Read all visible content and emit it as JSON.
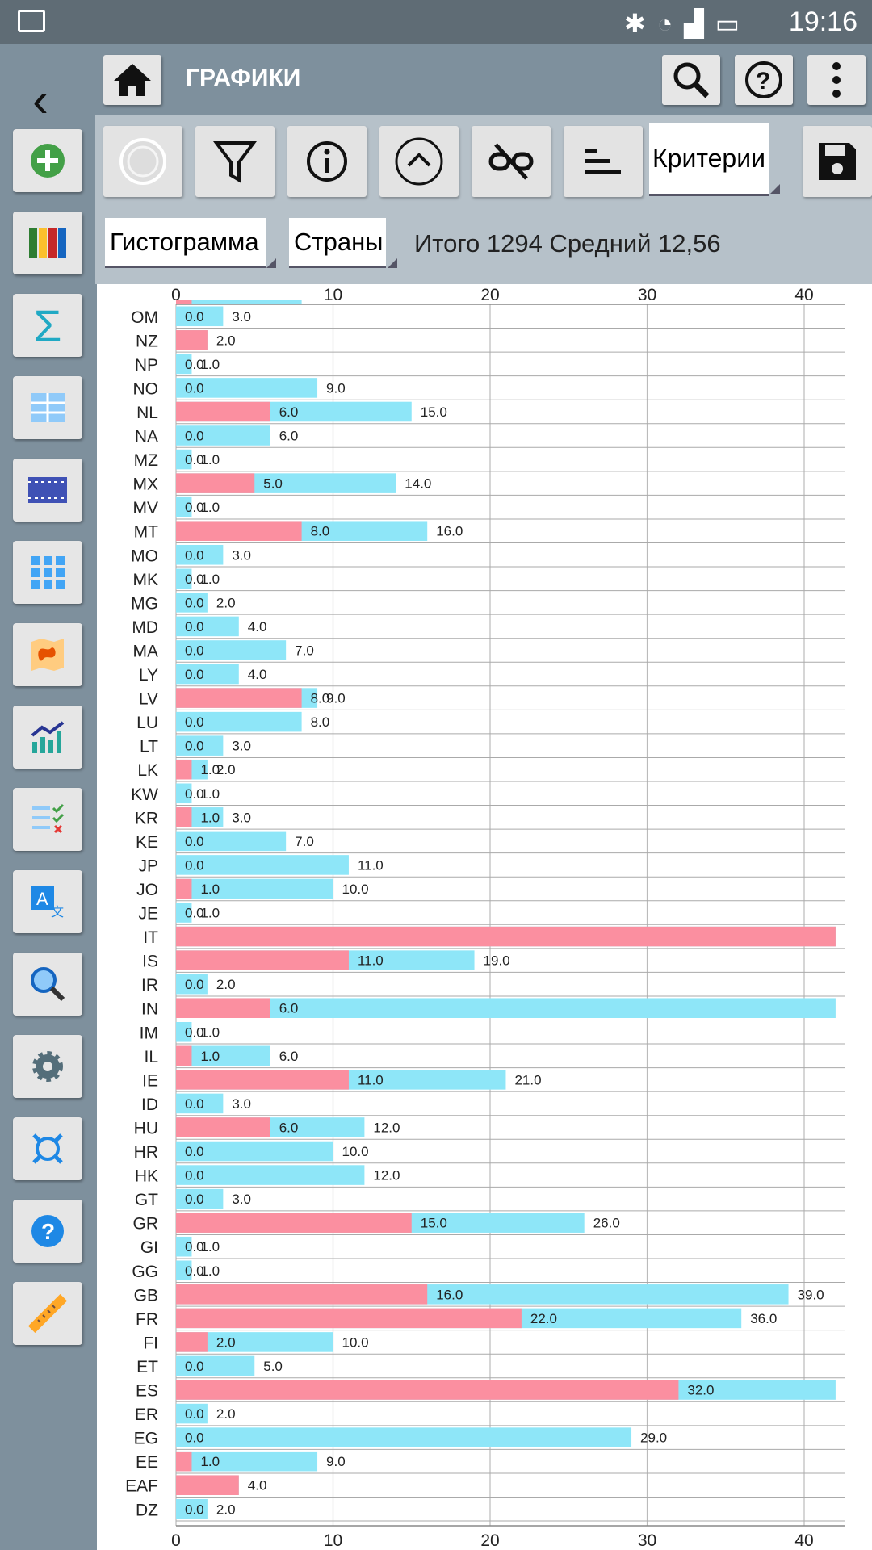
{
  "status": {
    "time": "19:16"
  },
  "header": {
    "title": "ГРАФИКИ"
  },
  "toolbar": {
    "criteria_label": "Критерии"
  },
  "selectors": {
    "chart_type": "Гистограмма",
    "group_by": "Страны"
  },
  "summary": "Итого 1294 Средний 12,56",
  "colors": {
    "series_red": "#fb8fa0",
    "series_blue": "#8ee6f8",
    "sidebar": "#7e909d",
    "toolbar": "#b6c1c9"
  },
  "chart_data": {
    "type": "bar",
    "orientation": "horizontal",
    "grid": true,
    "xlim": [
      0,
      42
    ],
    "x_ticks": [
      0,
      10,
      20,
      30,
      40
    ],
    "categories": [
      "OM",
      "NZ",
      "NP",
      "NO",
      "NL",
      "NA",
      "MZ",
      "MX",
      "MV",
      "MT",
      "MO",
      "MK",
      "MG",
      "MD",
      "MA",
      "LY",
      "LV",
      "LU",
      "LT",
      "LK",
      "KW",
      "KR",
      "KE",
      "JP",
      "JO",
      "JE",
      "IT",
      "IS",
      "IR",
      "IN",
      "IM",
      "IL",
      "IE",
      "ID",
      "HU",
      "HR",
      "HK",
      "GT",
      "GR",
      "GI",
      "GG",
      "GB",
      "FR",
      "FI",
      "ET",
      "ES",
      "ER",
      "EG",
      "EE",
      "EAF",
      "DZ"
    ],
    "series": [
      {
        "values": [
          0,
          2,
          0,
          0,
          6,
          0,
          0,
          5,
          0,
          8,
          0,
          0,
          0,
          0,
          0,
          0,
          8,
          0,
          0,
          1,
          0,
          1,
          0,
          0,
          1,
          0,
          42,
          11,
          0,
          6,
          0,
          1,
          11,
          0,
          6,
          0,
          0,
          0,
          15,
          0,
          0,
          16,
          22,
          2,
          0,
          32,
          0,
          0,
          1,
          4,
          0
        ]
      },
      {
        "values": [
          3,
          2,
          1,
          9,
          15,
          6,
          1,
          14,
          1,
          16,
          3,
          1,
          2,
          4,
          7,
          4,
          9,
          8,
          3,
          2,
          1,
          3,
          7,
          11,
          10,
          1,
          42,
          19,
          2,
          42,
          1,
          6,
          21,
          3,
          12,
          10,
          12,
          3,
          26,
          1,
          1,
          39,
          36,
          10,
          5,
          42,
          2,
          29,
          9,
          4,
          2
        ]
      }
    ]
  }
}
